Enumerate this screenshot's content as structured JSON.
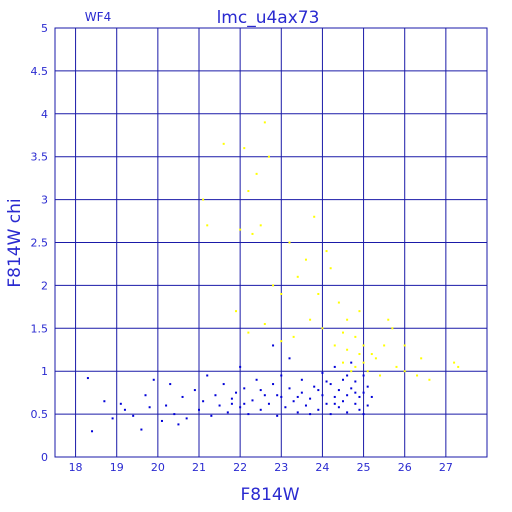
{
  "chart_data": {
    "type": "scatter",
    "title": "lmc_u4ax73",
    "annotation": "WF4",
    "x_label": "F814W",
    "y_label": "F814W chi",
    "xlim": [
      17.5,
      28
    ],
    "ylim": [
      0,
      5
    ],
    "xticks": [
      18,
      19,
      20,
      21,
      22,
      23,
      24,
      25,
      26,
      27
    ],
    "yticks": [
      0,
      0.5,
      1,
      1.5,
      2,
      2.5,
      3,
      3.5,
      4,
      4.5,
      5
    ],
    "grid": true,
    "axis_color": "#1a1aa8",
    "series": [
      {
        "color": "#0000d8",
        "x": [
          18.3,
          18.4,
          18.7,
          18.9,
          19.1,
          19.2,
          19.4,
          19.6,
          19.7,
          19.8,
          19.9,
          20.1,
          20.2,
          20.3,
          20.4,
          20.5,
          20.6,
          20.7,
          20.9,
          21.0,
          21.1,
          21.2,
          21.3,
          21.4,
          21.5,
          21.6,
          21.7,
          21.8,
          21.9,
          22.0,
          22.0,
          22.1,
          22.2,
          22.3,
          22.4,
          22.5,
          22.6,
          22.7,
          22.8,
          22.9,
          23.0,
          23.0,
          23.1,
          23.2,
          23.3,
          23.4,
          23.5,
          23.5,
          23.6,
          23.7,
          23.8,
          23.9,
          24.0,
          24.0,
          24.1,
          24.2,
          24.2,
          24.3,
          24.4,
          24.4,
          24.5,
          24.5,
          24.6,
          24.6,
          24.7,
          24.7,
          24.8,
          24.8,
          24.9,
          24.9,
          25.0,
          25.0,
          25.1,
          25.1,
          25.2,
          23.2,
          22.8,
          24.3,
          21.8,
          22.5,
          23.7,
          24.1,
          24.8,
          23.4,
          22.1,
          24.6,
          23.9,
          25.0,
          24.3,
          22.9
        ],
        "y": [
          0.92,
          0.3,
          0.65,
          0.45,
          0.62,
          0.55,
          0.48,
          0.32,
          0.72,
          0.58,
          0.9,
          0.42,
          0.6,
          0.85,
          0.5,
          0.38,
          0.7,
          0.45,
          0.78,
          0.55,
          0.65,
          0.95,
          0.48,
          0.72,
          0.6,
          0.85,
          0.52,
          0.68,
          0.75,
          0.58,
          1.05,
          0.8,
          0.5,
          0.66,
          0.9,
          0.55,
          0.72,
          0.62,
          0.85,
          0.48,
          0.7,
          0.95,
          0.58,
          0.8,
          0.65,
          0.52,
          0.75,
          0.9,
          0.6,
          0.68,
          0.82,
          0.55,
          0.72,
          0.98,
          0.62,
          0.85,
          0.5,
          0.7,
          0.78,
          0.58,
          0.9,
          0.65,
          0.72,
          0.52,
          0.8,
          1.1,
          0.62,
          0.88,
          0.7,
          0.55,
          0.75,
          0.95,
          0.6,
          0.82,
          0.7,
          1.15,
          1.3,
          1.05,
          0.62,
          0.78,
          0.5,
          0.88,
          0.75,
          0.7,
          0.62,
          0.95,
          0.78,
          0.5,
          0.62,
          0.72
        ]
      },
      {
        "color": "#ffff00",
        "x": [
          21.6,
          22.1,
          22.2,
          22.4,
          22.6,
          22.7,
          22.3,
          22.5,
          22.0,
          23.2,
          23.6,
          23.8,
          24.1,
          24.4,
          23.4,
          23.0,
          22.8,
          24.2,
          24.6,
          24.8,
          25.0,
          25.2,
          25.5,
          25.8,
          26.0,
          26.3,
          26.6,
          27.2,
          27.3,
          26.0,
          25.7,
          24.9,
          24.5,
          24.7,
          24.9,
          25.1,
          24.3,
          24.0,
          23.7,
          23.3,
          23.0,
          22.6,
          22.2,
          21.9,
          21.2,
          21.1,
          24.6,
          25.3,
          25.4,
          24.8,
          25.6,
          26.4,
          23.9,
          24.5,
          25.0
        ],
        "y": [
          3.65,
          3.6,
          3.1,
          3.3,
          3.9,
          3.5,
          2.6,
          2.7,
          2.65,
          2.5,
          2.3,
          2.8,
          2.4,
          1.8,
          2.1,
          1.9,
          2.0,
          2.2,
          1.6,
          1.4,
          1.3,
          1.2,
          1.3,
          1.05,
          1.0,
          0.95,
          0.9,
          1.1,
          1.05,
          1.3,
          1.5,
          1.7,
          1.1,
          1.0,
          1.2,
          1.0,
          1.3,
          1.5,
          1.6,
          1.4,
          1.35,
          1.55,
          1.45,
          1.7,
          2.7,
          3.0,
          1.25,
          1.15,
          0.95,
          1.05,
          1.6,
          1.15,
          1.9,
          1.45,
          1.1
        ]
      }
    ]
  }
}
